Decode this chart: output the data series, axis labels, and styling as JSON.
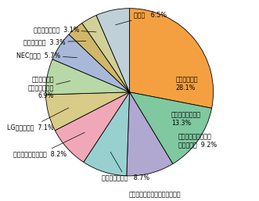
{
  "labels_inside": [
    "ノキア（芬）\n28.1%",
    "モトローラ（米）\n13.3%",
    "ソニー・エリクソン\n（日／瑞）  9.2%"
  ],
  "labels_outside": [
    "シャープ（日）   8.7%",
    "サムスン電子（韓）  8.2%",
    "LG電子（韓）  7.1%",
    "パナソニック\nモバイル（日）\n6.9%",
    "NEC（日）  5.7%",
    "富士通（日）  3.3%",
    "三菱電機（日）  3.1%",
    "その他   6.5%"
  ],
  "values": [
    28.1,
    13.3,
    9.2,
    8.7,
    8.2,
    7.1,
    6.9,
    5.7,
    3.3,
    3.1,
    6.5
  ],
  "colors": [
    "#F5A040",
    "#80C8A0",
    "#B0A8D0",
    "#98D0D0",
    "#F0A8B8",
    "#D8CC88",
    "#B8D8A8",
    "#A8B8D8",
    "#D0B868",
    "#D0D098",
    "#C0D0D8"
  ],
  "source_text": "富士キメラ総研資料により作成",
  "startangle": 90,
  "figure_width": 3.31,
  "figure_height": 2.57,
  "dpi": 100
}
